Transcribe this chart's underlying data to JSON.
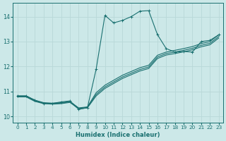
{
  "bg_color": "#cce8e8",
  "grid_color": "#b8d8d8",
  "line_color": "#1a7070",
  "xlabel": "Humidex (Indice chaleur)",
  "xlim": [
    -0.5,
    23.5
  ],
  "ylim": [
    9.75,
    14.55
  ],
  "xticks": [
    0,
    1,
    2,
    3,
    4,
    5,
    6,
    7,
    8,
    9,
    10,
    11,
    12,
    13,
    14,
    15,
    16,
    17,
    18,
    19,
    20,
    21,
    22,
    23
  ],
  "yticks": [
    10,
    11,
    12,
    13,
    14
  ],
  "line_jagged_x": [
    0,
    1,
    2,
    3,
    4,
    5,
    6,
    7,
    8,
    9,
    10,
    11,
    12,
    13,
    14,
    15,
    16,
    17,
    18,
    19,
    20,
    21,
    22,
    23
  ],
  "line_jagged_y": [
    10.82,
    10.82,
    10.65,
    10.52,
    10.52,
    10.58,
    10.62,
    10.28,
    10.35,
    11.9,
    14.05,
    13.75,
    13.85,
    14.0,
    14.22,
    14.24,
    13.28,
    12.72,
    12.58,
    12.6,
    12.58,
    13.0,
    13.05,
    13.27
  ],
  "line_straight1_x": [
    0,
    1,
    2,
    3,
    4,
    5,
    6,
    7,
    8,
    9,
    10,
    11,
    12,
    13,
    14,
    15,
    16,
    17,
    18,
    19,
    20,
    21,
    22,
    23
  ],
  "line_straight1_y": [
    10.82,
    10.82,
    10.65,
    10.55,
    10.53,
    10.55,
    10.6,
    10.34,
    10.38,
    10.95,
    11.25,
    11.45,
    11.65,
    11.8,
    11.95,
    12.05,
    12.45,
    12.58,
    12.65,
    12.72,
    12.8,
    12.92,
    13.0,
    13.27
  ],
  "line_straight2_x": [
    0,
    1,
    2,
    3,
    4,
    5,
    6,
    7,
    8,
    9,
    10,
    11,
    12,
    13,
    14,
    15,
    16,
    17,
    18,
    19,
    20,
    21,
    22,
    23
  ],
  "line_straight2_y": [
    10.8,
    10.8,
    10.62,
    10.53,
    10.51,
    10.53,
    10.58,
    10.32,
    10.36,
    10.88,
    11.18,
    11.38,
    11.58,
    11.73,
    11.88,
    11.98,
    12.38,
    12.52,
    12.58,
    12.65,
    12.73,
    12.85,
    12.93,
    13.2
  ],
  "line_straight3_x": [
    0,
    1,
    2,
    3,
    4,
    5,
    6,
    7,
    8,
    9,
    10,
    11,
    12,
    13,
    14,
    15,
    16,
    17,
    18,
    19,
    20,
    21,
    22,
    23
  ],
  "line_straight3_y": [
    10.78,
    10.78,
    10.6,
    10.51,
    10.49,
    10.51,
    10.56,
    10.3,
    10.34,
    10.82,
    11.12,
    11.32,
    11.52,
    11.67,
    11.82,
    11.92,
    12.32,
    12.46,
    12.52,
    12.59,
    12.67,
    12.79,
    12.87,
    13.14
  ]
}
